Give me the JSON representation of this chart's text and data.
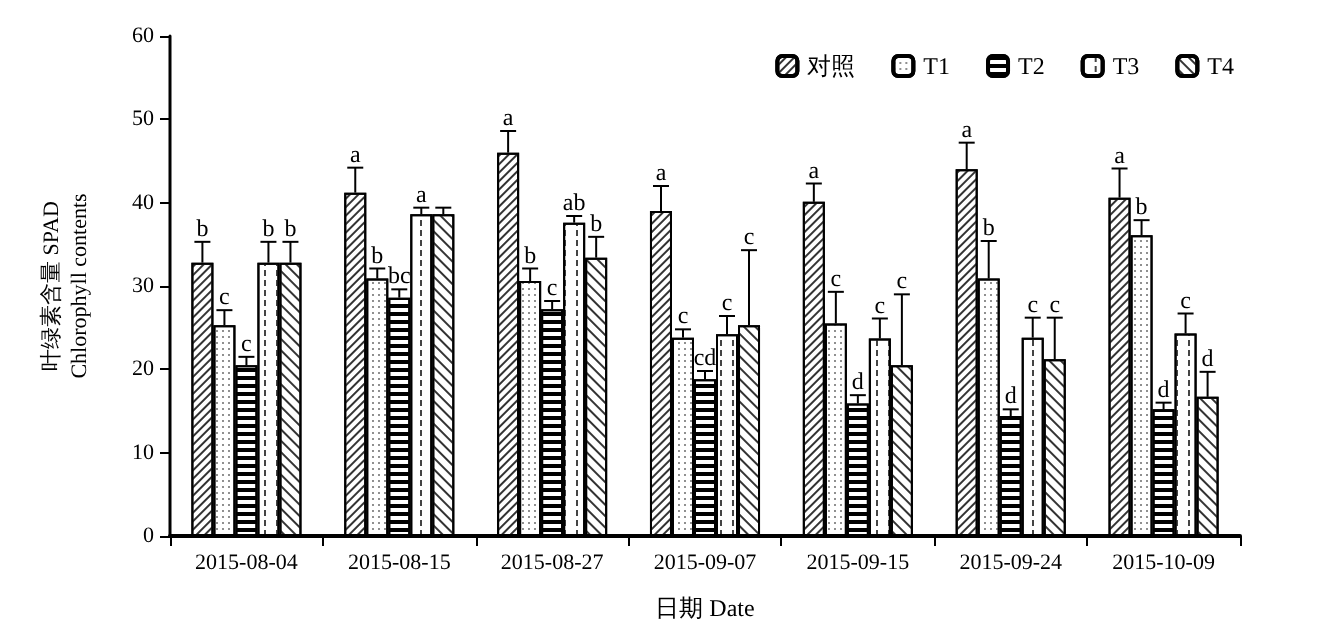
{
  "chart_data": {
    "type": "bar",
    "xlabel": "日期 Date",
    "ylabel": "叶绿素含量 SPAD\nChlorophyll contents",
    "categories": [
      "2015-08-04",
      "2015-08-15",
      "2015-08-27",
      "2015-09-07",
      "2015-09-15",
      "2015-09-24",
      "2015-10-09"
    ],
    "series": [
      {
        "name": "对照",
        "color": "#ffffff",
        "values": [
          32.8,
          41.2,
          46.0,
          39.0,
          40.1,
          44.0,
          40.6
        ],
        "errors": [
          [
            32.8,
            35.3
          ],
          [
            41.2,
            44.2
          ],
          [
            46.0,
            48.6
          ],
          [
            39.0,
            42.0
          ],
          [
            40.1,
            42.3
          ],
          [
            44.0,
            47.2
          ],
          [
            40.6,
            44.1
          ]
        ],
        "value_labels": [
          "b",
          "a",
          "a",
          "a",
          "a",
          "a",
          "a"
        ]
      },
      {
        "name": "T1",
        "color": "#ffffff",
        "values": [
          25.3,
          30.9,
          30.6,
          23.8,
          25.5,
          30.9,
          36.1
        ],
        "errors": [
          [
            25.3,
            27.1
          ],
          [
            30.9,
            32.1
          ],
          [
            30.6,
            32.1
          ],
          [
            23.8,
            24.8
          ],
          [
            25.5,
            29.3
          ],
          [
            30.9,
            35.4
          ],
          [
            36.1,
            37.9
          ]
        ],
        "value_labels": [
          "c",
          "b",
          "b",
          "c",
          "c",
          "b",
          "b"
        ]
      },
      {
        "name": "T2",
        "color": "#ffffff",
        "values": [
          20.5,
          28.6,
          27.2,
          18.8,
          15.9,
          14.4,
          15.2
        ],
        "errors": [
          [
            20.5,
            21.5
          ],
          [
            28.6,
            29.6
          ],
          [
            27.2,
            28.2
          ],
          [
            18.8,
            19.8
          ],
          [
            15.9,
            16.9
          ],
          [
            14.4,
            15.2
          ],
          [
            15.2,
            16.0
          ]
        ],
        "value_labels": [
          "c",
          "bc",
          "c",
          "cd",
          "d",
          "d",
          "d"
        ]
      },
      {
        "name": "T3",
        "color": "#ffffff",
        "values": [
          32.8,
          38.6,
          37.6,
          24.2,
          23.7,
          23.8,
          24.3
        ],
        "errors": [
          [
            32.8,
            35.3
          ],
          [
            38.6,
            39.4
          ],
          [
            37.6,
            38.4
          ],
          [
            24.2,
            26.4
          ],
          [
            23.7,
            26.1
          ],
          [
            23.8,
            26.2
          ],
          [
            24.3,
            26.7
          ]
        ],
        "value_labels": [
          "b",
          "a",
          "ab",
          "c",
          "c",
          "c",
          "c"
        ]
      },
      {
        "name": "T4",
        "color": "#ffffff",
        "values": [
          32.8,
          38.6,
          33.4,
          25.3,
          20.5,
          21.2,
          16.7
        ],
        "errors": [
          [
            32.8,
            35.3
          ],
          [
            38.6,
            39.4
          ],
          [
            33.4,
            35.9
          ],
          [
            25.3,
            34.3
          ],
          [
            20.5,
            29.0
          ],
          [
            21.2,
            26.2
          ],
          [
            16.7,
            19.7
          ]
        ],
        "value_labels": [
          "b",
          null,
          "b",
          "c",
          "c",
          "c",
          "d"
        ]
      }
    ],
    "ylim": [
      0,
      60
    ],
    "yticks": [
      0,
      10,
      20,
      30,
      40,
      50,
      60
    ],
    "grid": false,
    "legend": "top right"
  }
}
